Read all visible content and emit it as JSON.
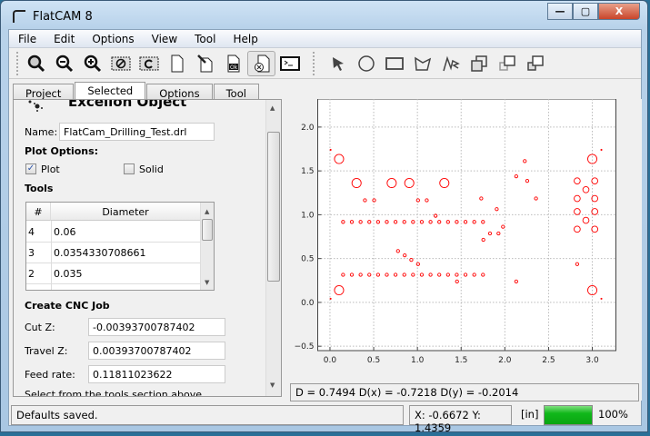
{
  "window": {
    "title": "FlatCAM 8",
    "minimize": "—",
    "maximize": "▢",
    "close": "X"
  },
  "menu": [
    "File",
    "Edit",
    "Options",
    "View",
    "Tool",
    "Help"
  ],
  "toolbar": {
    "left": [
      "zoom-fit-icon",
      "zoom-out-icon",
      "zoom-in-icon",
      "clear-plot-icon",
      "replot-icon",
      "new-file-icon",
      "edit-file-icon",
      "ok-file-icon",
      "delete-file-icon",
      "shell-icon"
    ],
    "right": [
      "pointer-icon",
      "circle-icon",
      "rectangle-icon",
      "polygon-icon",
      "path-icon",
      "union-icon",
      "move-icon",
      "copy-icon"
    ]
  },
  "tabs": [
    {
      "label": "Project"
    },
    {
      "label": "Selected"
    },
    {
      "label": "Options"
    },
    {
      "label": "Tool"
    }
  ],
  "panel": {
    "heading": "Excellon Object",
    "name_label": "Name:",
    "name_value": "FlatCam_Drilling_Test.drl",
    "plot_options": "Plot Options:",
    "plot_label": "Plot",
    "plot_checked": true,
    "solid_label": "Solid",
    "solid_checked": false,
    "tools_heading": "Tools",
    "tools_columns": [
      "#",
      "Diameter"
    ],
    "tools_rows": [
      {
        "id": "4",
        "dia": "0.06"
      },
      {
        "id": "3",
        "dia": "0.0354330708661"
      },
      {
        "id": "2",
        "dia": "0.035"
      }
    ],
    "cnc_heading": "Create CNC Job",
    "cut_z_label": "Cut Z:",
    "cut_z": "-0.00393700787402",
    "travel_z_label": "Travel Z:",
    "travel_z": "0.00393700787402",
    "feed_label": "Feed rate:",
    "feed": "0.11811023622",
    "hint": "Select from the tools section above"
  },
  "readout": "D = 0.7494  D(x) = -0.7218  D(y) = -0.2014",
  "status": {
    "message": "Defaults saved.",
    "coords": "X: -0.6672   Y: 1.4359",
    "units": "[in]",
    "progress_label": "100%",
    "progress": 100
  },
  "chart_data": {
    "type": "scatter",
    "marker": "open-circle",
    "color": "#ff0000",
    "xlim": [
      -0.14,
      3.27
    ],
    "ylim": [
      -0.55,
      2.32
    ],
    "xticks": [
      "0.0",
      "0.5",
      "1.0",
      "1.5",
      "2.0",
      "2.5",
      "3.0"
    ],
    "yticks": [
      "−0.5",
      "0.0",
      "0.5",
      "1.0",
      "1.5",
      "2.0"
    ],
    "grid": true,
    "groups": [
      {
        "diameter": 0.105,
        "points": [
          [
            0.104,
            1.636
          ],
          [
            0.304,
            1.362
          ],
          [
            0.706,
            1.362
          ],
          [
            0.907,
            1.362
          ],
          [
            1.308,
            1.362
          ],
          [
            0.104,
            0.139
          ],
          [
            3.0,
            1.636
          ],
          [
            3.0,
            0.139
          ]
        ]
      },
      {
        "diameter": 0.07,
        "points": [
          [
            2.827,
            1.386
          ],
          [
            3.028,
            1.386
          ],
          [
            2.927,
            1.286
          ],
          [
            2.827,
            1.185
          ],
          [
            3.028,
            1.185
          ],
          [
            2.827,
            1.036
          ],
          [
            3.028,
            1.036
          ],
          [
            2.927,
            0.936
          ],
          [
            2.827,
            0.835
          ],
          [
            3.028,
            0.835
          ]
        ]
      },
      {
        "diameter": 0.035,
        "points": [
          [
            0.15,
            0.918
          ],
          [
            0.25,
            0.918
          ],
          [
            0.35,
            0.918
          ],
          [
            0.45,
            0.918
          ],
          [
            0.55,
            0.918
          ],
          [
            0.65,
            0.918
          ],
          [
            0.75,
            0.918
          ],
          [
            0.85,
            0.918
          ],
          [
            0.95,
            0.918
          ],
          [
            1.05,
            0.918
          ],
          [
            1.15,
            0.918
          ],
          [
            1.25,
            0.918
          ],
          [
            1.35,
            0.918
          ],
          [
            1.45,
            0.918
          ],
          [
            1.55,
            0.918
          ],
          [
            1.65,
            0.918
          ],
          [
            1.75,
            0.918
          ],
          [
            0.15,
            0.315
          ],
          [
            0.25,
            0.315
          ],
          [
            0.35,
            0.315
          ],
          [
            0.45,
            0.315
          ],
          [
            0.55,
            0.315
          ],
          [
            0.65,
            0.315
          ],
          [
            0.75,
            0.315
          ],
          [
            0.85,
            0.315
          ],
          [
            0.95,
            0.315
          ],
          [
            1.05,
            0.315
          ],
          [
            1.15,
            0.315
          ],
          [
            1.25,
            0.315
          ],
          [
            1.35,
            0.315
          ],
          [
            1.45,
            0.315
          ],
          [
            1.55,
            0.315
          ],
          [
            1.65,
            0.315
          ],
          [
            1.75,
            0.315
          ],
          [
            0.4,
            1.165
          ],
          [
            0.505,
            1.165
          ],
          [
            1.007,
            1.165
          ],
          [
            1.107,
            1.165
          ],
          [
            1.208,
            0.988
          ],
          [
            1.73,
            1.185
          ],
          [
            1.907,
            1.064
          ],
          [
            1.979,
            0.863
          ],
          [
            1.927,
            0.787
          ],
          [
            1.83,
            0.787
          ],
          [
            1.754,
            0.714
          ],
          [
            2.13,
            1.438
          ],
          [
            2.228,
            1.612
          ],
          [
            2.256,
            1.386
          ],
          [
            2.356,
            1.185
          ],
          [
            0.778,
            0.586
          ],
          [
            0.855,
            0.537
          ],
          [
            0.93,
            0.485
          ],
          [
            1.007,
            0.437
          ],
          [
            1.453,
            0.239
          ],
          [
            2.13,
            0.239
          ],
          [
            2.827,
            0.437
          ]
        ]
      },
      {
        "diameter": 0.008,
        "points": [
          [
            0.007,
            1.74
          ],
          [
            0.007,
            0.042
          ],
          [
            3.104,
            1.74
          ],
          [
            3.104,
            0.042
          ]
        ]
      }
    ]
  }
}
